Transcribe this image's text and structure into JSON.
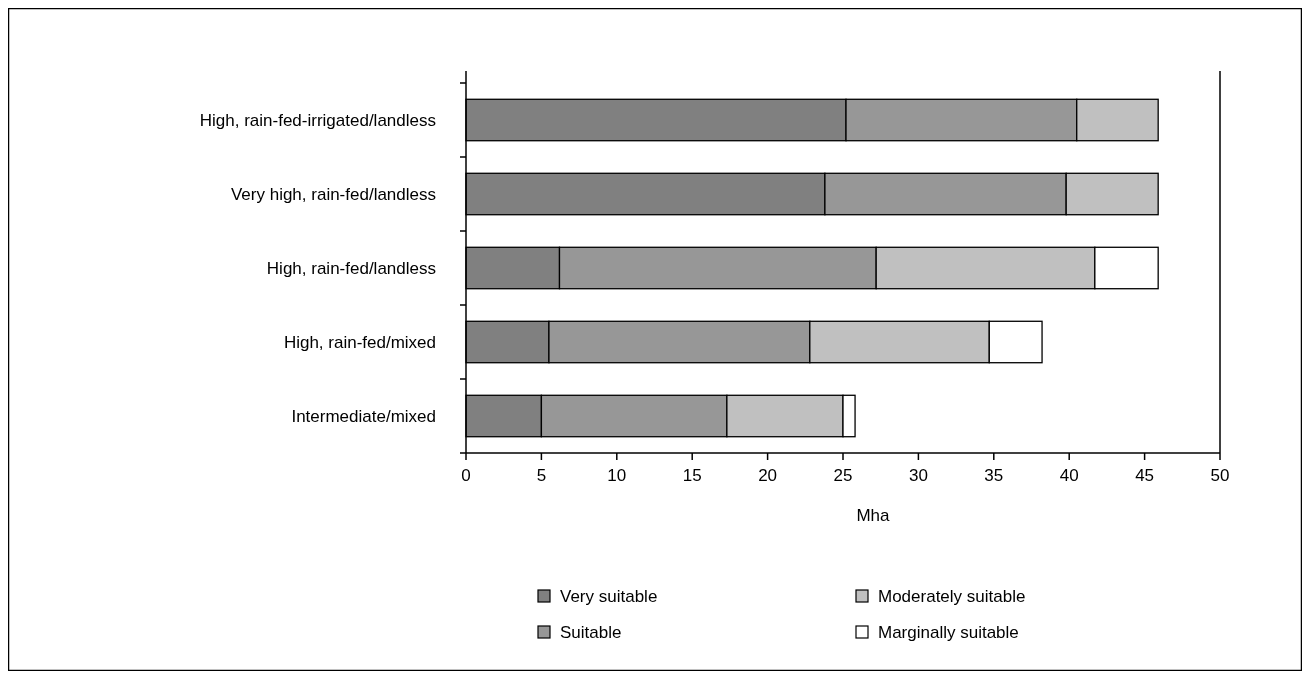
{
  "chart_data": {
    "type": "bar",
    "orientation": "horizontal",
    "stacked": true,
    "xlabel": "Mha",
    "categories": [
      "High, rain-fed-irrigated/landless",
      "Very high, rain-fed/landless",
      "High, rain-fed/landless",
      "High, rain-fed/mixed",
      "Intermediate/mixed"
    ],
    "series": [
      {
        "name": "Very suitable",
        "color": "#808080",
        "values": [
          25.2,
          23.8,
          6.2,
          5.5,
          5.0
        ]
      },
      {
        "name": "Suitable",
        "color": "#979797",
        "values": [
          15.3,
          16.0,
          21.0,
          17.3,
          12.3
        ]
      },
      {
        "name": "Moderately suitable",
        "color": "#c0c0c0",
        "values": [
          5.4,
          6.1,
          14.5,
          11.9,
          7.7
        ]
      },
      {
        "name": "Marginally suitable",
        "color": "#ffffff",
        "values": [
          0,
          0,
          4.2,
          3.5,
          0.8
        ]
      }
    ],
    "xlim": [
      0,
      50
    ],
    "xticks": [
      0,
      5,
      10,
      15,
      20,
      25,
      30,
      35,
      40,
      45,
      50
    ],
    "grid": false,
    "legend": "bottom"
  }
}
